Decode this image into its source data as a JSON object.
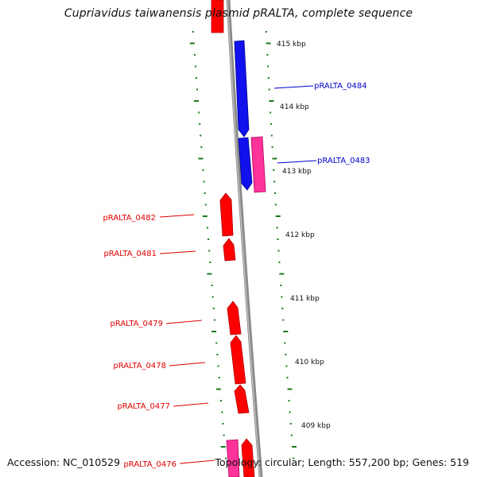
{
  "title": "Cupriavidus taiwanensis plasmid pRALTA, complete sequence",
  "colors": {
    "backbone": "#888888",
    "tick": "#1a7a1a",
    "forward_gene": "#ff0000",
    "reverse_gene": "#1010ff",
    "rna_gene": "#ff3399",
    "label_forward": "#e00000",
    "label_reverse": "#0000cc"
  },
  "scale_labels": [
    "415 kbp",
    "414 kbp",
    "413 kbp",
    "412 kbp",
    "411 kbp",
    "410 kbp",
    "409 kbp"
  ],
  "gene_labels": [
    {
      "text": "pRALTA_0484",
      "strand": "reverse"
    },
    {
      "text": "pRALTA_0483",
      "strand": "reverse"
    },
    {
      "text": "pRALTA_0482",
      "strand": "forward"
    },
    {
      "text": "pRALTA_0481",
      "strand": "forward"
    },
    {
      "text": "pRALTA_0479",
      "strand": "forward"
    },
    {
      "text": "pRALTA_0478",
      "strand": "forward"
    },
    {
      "text": "pRALTA_0477",
      "strand": "forward"
    },
    {
      "text": "pRALTA_0476",
      "strand": "forward"
    }
  ],
  "footer": {
    "accession": "Accession: NC_010529",
    "topology": "Topology: circular; Length: 557,200 bp; Genes: 519"
  }
}
